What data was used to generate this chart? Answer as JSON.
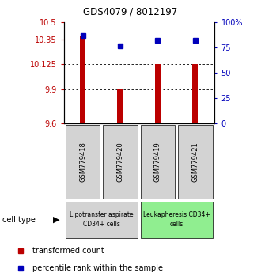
{
  "title": "GDS4079 / 8012197",
  "samples": [
    "GSM779418",
    "GSM779420",
    "GSM779419",
    "GSM779421"
  ],
  "bar_values": [
    10.38,
    9.9,
    10.125,
    10.125
  ],
  "dot_values": [
    87,
    77,
    82,
    82
  ],
  "y_min": 9.6,
  "y_max": 10.5,
  "y_ticks_left": [
    10.5,
    10.35,
    10.125,
    9.9,
    9.6
  ],
  "y_ticks_right": [
    100,
    75,
    50,
    25,
    0
  ],
  "bar_color": "#bb0000",
  "dot_color": "#0000bb",
  "cell_type_colors": [
    "#d3d3d3",
    "#90ee90"
  ],
  "cell_type_labels": [
    "Lipotransfer aspirate\nCD34+ cells",
    "Leukapheresis CD34+\ncells"
  ],
  "legend_red_label": "transformed count",
  "legend_blue_label": "percentile rank within the sample",
  "cell_type_label": "cell type"
}
